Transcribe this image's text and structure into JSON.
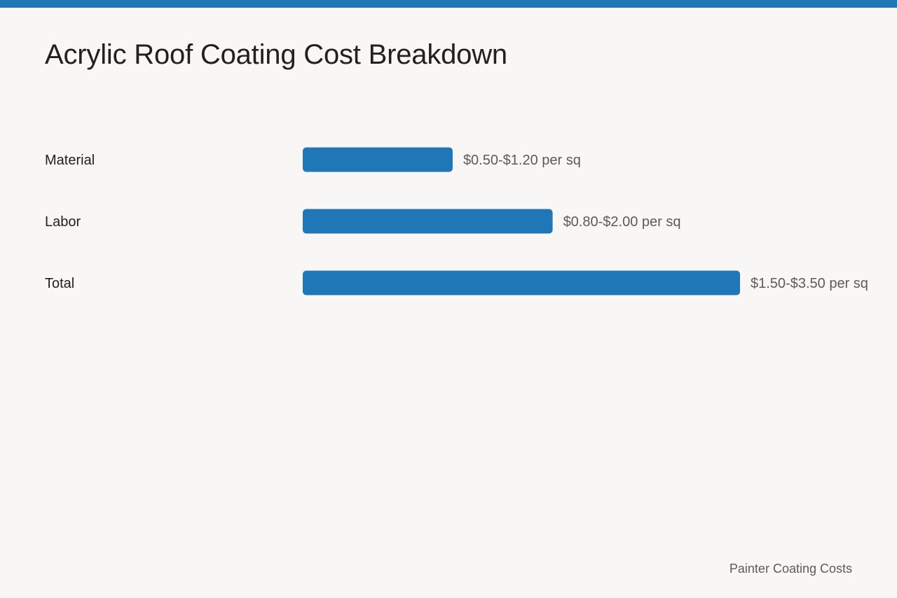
{
  "accent_color": "#1f77b8",
  "title": "Acrylic Roof Coating Cost Breakdown",
  "footer": "Painter Coating Costs",
  "chart_data": {
    "type": "bar",
    "orientation": "horizontal",
    "title": "Acrylic Roof Coating Cost Breakdown",
    "xlabel": "",
    "ylabel": "",
    "grid": false,
    "legend": "none",
    "bar_color": "#1f77b8",
    "unit": "per sq",
    "categories": [
      "Material",
      "Labor",
      "Total"
    ],
    "values": [
      1.2,
      2.0,
      3.5
    ],
    "ranges": [
      {
        "low": 0.5,
        "high": 1.2
      },
      {
        "low": 0.8,
        "high": 2.0
      },
      {
        "low": 1.5,
        "high": 3.5
      }
    ],
    "data_labels": [
      "$0.50-$1.20 per sq",
      "$0.80-$2.00 per sq",
      "$1.50-$3.50 per sq"
    ],
    "xlim": [
      0,
      3.5
    ]
  }
}
